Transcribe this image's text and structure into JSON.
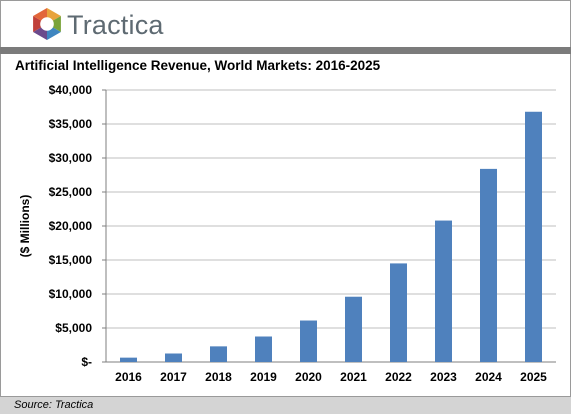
{
  "header": {
    "brand": "Tractica",
    "logo_icon": "tractica-logo-icon",
    "bar_color": "#7b7b7b"
  },
  "chart_data": {
    "type": "bar",
    "title": "Artificial Intelligence Revenue, World Markets: 2016-2025",
    "xlabel": "",
    "ylabel": "($ Millions)",
    "categories": [
      "2016",
      "2017",
      "2018",
      "2019",
      "2020",
      "2021",
      "2022",
      "2023",
      "2024",
      "2025"
    ],
    "values": [
      640,
      1250,
      2300,
      3750,
      6100,
      9600,
      14500,
      20800,
      28400,
      36800
    ],
    "ylim": [
      0,
      40000
    ],
    "yticks": [
      0,
      5000,
      10000,
      15000,
      20000,
      25000,
      30000,
      35000,
      40000
    ],
    "ytick_labels": [
      "$-",
      "$5,000",
      "$10,000",
      "$15,000",
      "$20,000",
      "$25,000",
      "$30,000",
      "$35,000",
      "$40,000"
    ],
    "grid": true,
    "legend": "none",
    "bar_color": "#4f81bd"
  },
  "footer": {
    "source": "Source: Tractica"
  }
}
